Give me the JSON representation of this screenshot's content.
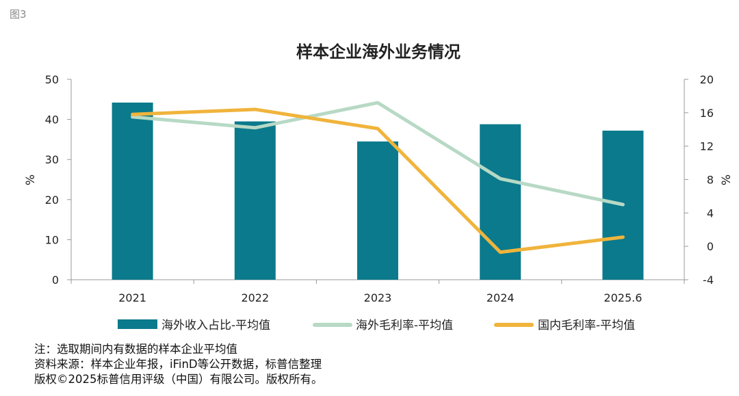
{
  "figure_label": "图3",
  "notes": [
    "注：选取期间内有数据的样本企业平均值",
    "资料来源：样本企业年报，iFinD等公开数据，标普信整理",
    "版权©2025标普信用评级（中国）有限公司。版权所有。"
  ],
  "colors": {
    "bar": "#0b7a8c",
    "overseas_margin": "#b7d9c5",
    "domestic_margin": "#f0b43c",
    "axis": "#999999",
    "text": "#222222"
  },
  "chart_data": {
    "type": "bar",
    "title": "样本企业海外业务情况",
    "categories": [
      "2021",
      "2022",
      "2023",
      "2024",
      "2025.6"
    ],
    "ylabel": "%",
    "ylabel_right": "%",
    "ylim": [
      0,
      50
    ],
    "yticks": [
      "0",
      "10",
      "20",
      "30",
      "40",
      "50"
    ],
    "ylim_right": [
      -4,
      20
    ],
    "yticks_right": [
      "-4",
      "0",
      "4",
      "8",
      "12",
      "16",
      "20"
    ],
    "series": [
      {
        "name": "海外收入占比-平均值",
        "type": "bar",
        "axis": "left",
        "values": [
          44.2,
          39.5,
          34.5,
          38.8,
          37.2
        ]
      },
      {
        "name": "海外毛利率-平均值",
        "type": "line",
        "axis": "right",
        "values": [
          15.5,
          14.2,
          17.2,
          8.1,
          5.0
        ]
      },
      {
        "name": "国内毛利率-平均值",
        "type": "line",
        "axis": "right",
        "values": [
          15.8,
          16.4,
          14.1,
          -0.7,
          1.1
        ]
      }
    ]
  }
}
